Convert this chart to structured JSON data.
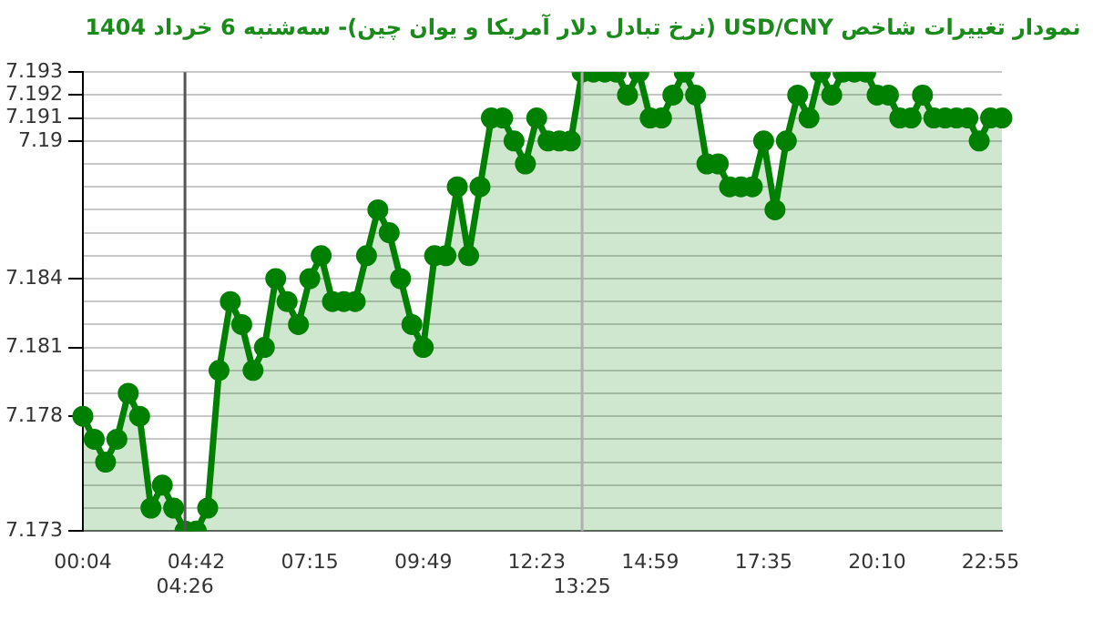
{
  "chart_data": {
    "type": "area",
    "title": "نمودار تغییرات شاخص USD/CNY (نرخ تبادل دلار آمریکا و یوان چین)- سه‌شنبه  6 خرداد 1404",
    "categories": [
      "00:04",
      null,
      null,
      null,
      null,
      null,
      null,
      null,
      null,
      "04:26",
      "04:42",
      null,
      null,
      null,
      null,
      null,
      null,
      null,
      null,
      null,
      "07:15",
      null,
      null,
      null,
      null,
      null,
      null,
      null,
      null,
      null,
      "09:49",
      null,
      null,
      null,
      null,
      null,
      null,
      null,
      null,
      null,
      "12:23",
      null,
      null,
      null,
      "13:25",
      null,
      null,
      null,
      null,
      null,
      "14:59",
      null,
      null,
      null,
      null,
      null,
      null,
      null,
      null,
      null,
      "17:35",
      null,
      null,
      null,
      null,
      null,
      null,
      null,
      null,
      null,
      "20:10",
      null,
      null,
      null,
      null,
      null,
      null,
      null,
      null,
      null,
      "22:55",
      null
    ],
    "series": [
      {
        "color": "#008000",
        "values": [
          7.178,
          7.177,
          7.176,
          7.177,
          7.179,
          7.178,
          7.174,
          7.175,
          7.174,
          7.173,
          7.173,
          7.174,
          7.18,
          7.183,
          7.182,
          7.18,
          7.181,
          7.184,
          7.183,
          7.182,
          7.184,
          7.185,
          7.183,
          7.183,
          7.183,
          7.185,
          7.187,
          7.186,
          7.184,
          7.182,
          7.181,
          7.185,
          7.185,
          7.188,
          7.185,
          7.188,
          7.191,
          7.191,
          7.19,
          7.189,
          7.191,
          7.19,
          7.19,
          7.19,
          7.193,
          7.193,
          7.193,
          7.193,
          7.192,
          7.193,
          7.191,
          7.191,
          7.192,
          7.193,
          7.192,
          7.189,
          7.189,
          7.188,
          7.188,
          7.188,
          7.19,
          7.187,
          7.19,
          7.192,
          7.191,
          7.193,
          7.192,
          7.193,
          7.193,
          7.193,
          7.192,
          7.192,
          7.191,
          7.191,
          7.192,
          7.191,
          7.191,
          7.191,
          7.191,
          7.19,
          7.191,
          7.191
        ]
      }
    ],
    "ylim": [
      7.173,
      7.193
    ],
    "yticks": [
      7.173,
      {
        "value": 7.174,
        "label": null
      },
      {
        "value": 7.175,
        "label": null
      },
      {
        "value": 7.176,
        "label": null
      },
      {
        "value": 7.177,
        "label": null
      },
      7.178,
      {
        "value": 7.179,
        "label": null
      },
      {
        "value": 7.18,
        "label": null
      },
      7.181,
      {
        "value": 7.182,
        "label": null
      },
      {
        "value": 7.183,
        "label": null
      },
      7.184,
      {
        "value": 7.185,
        "label": null
      },
      {
        "value": 7.186,
        "label": null
      },
      {
        "value": 7.187,
        "label": null
      },
      {
        "value": 7.188,
        "label": null
      },
      {
        "value": 7.189,
        "label": null
      },
      {
        "value": 7.19,
        "label": "7.19"
      },
      7.191,
      7.192,
      7.193
    ],
    "ref_lines": [
      {
        "axis": "x",
        "value": "04:26",
        "color": "#555555"
      },
      {
        "axis": "x",
        "value": "13:25",
        "color": "#b0b0b0"
      }
    ],
    "grid": "y",
    "legend": false,
    "marker": "circle",
    "line_style": "solid"
  }
}
